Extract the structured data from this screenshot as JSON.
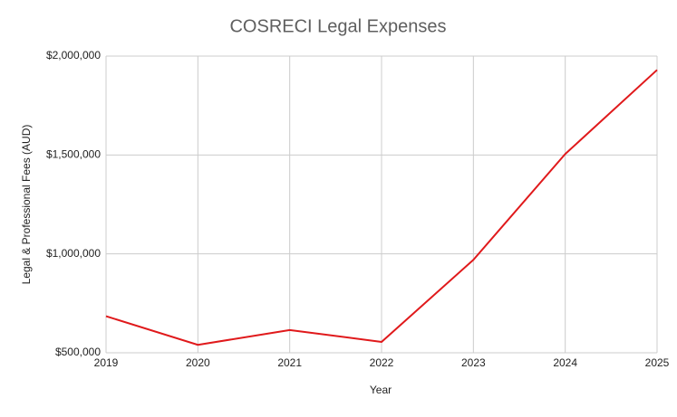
{
  "chart_data": {
    "type": "line",
    "title": "COSRECI Legal Expenses",
    "x_label": "Year",
    "y_label": "Legal & Professional Fees (AUD)",
    "x": [
      2019,
      2020,
      2021,
      2022,
      2023,
      2024,
      2025
    ],
    "series": [
      {
        "name": "Legal & Professional Fees (AUD)",
        "color": "#e0191b",
        "values": [
          685000,
          540000,
          615000,
          555000,
          970000,
          1505000,
          1930000
        ]
      }
    ],
    "xlim": [
      2019,
      2025
    ],
    "xticks": [
      2019,
      2020,
      2021,
      2022,
      2023,
      2024,
      2025
    ],
    "ylim": [
      500000,
      2000000
    ],
    "yticks": [
      {
        "value": 500000,
        "label": "$500,000"
      },
      {
        "value": 1000000,
        "label": "$1,000,000"
      },
      {
        "value": 1500000,
        "label": "$1,500,000"
      },
      {
        "value": 2000000,
        "label": "$2,000,000"
      }
    ],
    "grid": true
  }
}
